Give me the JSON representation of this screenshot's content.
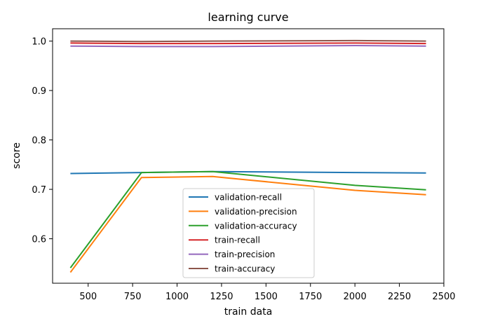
{
  "chart_data": {
    "type": "line",
    "title": "learning curve",
    "xlabel": "train data",
    "ylabel": "score",
    "xlim": [
      300,
      2500
    ],
    "ylim": [
      0.51,
      1.025
    ],
    "xticks": [
      500,
      750,
      1000,
      1250,
      1500,
      1750,
      2000,
      2250,
      2500
    ],
    "yticks": [
      0.6,
      0.7,
      0.8,
      0.9,
      1.0
    ],
    "xtick_labels": [
      "500",
      "750",
      "1000",
      "1250",
      "1500",
      "1750",
      "2000",
      "2250",
      "2500"
    ],
    "ytick_labels": [
      "0.6",
      "0.7",
      "0.8",
      "0.9",
      "1.0"
    ],
    "grid": false,
    "legend_position": "lower-center",
    "x": [
      400,
      800,
      1200,
      2000,
      2400
    ],
    "series": [
      {
        "name": "validation-recall",
        "color": "#1f77b4",
        "values": [
          0.732,
          0.734,
          0.736,
          0.734,
          0.733
        ]
      },
      {
        "name": "validation-precision",
        "color": "#ff7f0e",
        "values": [
          0.532,
          0.724,
          0.726,
          0.698,
          0.689
        ]
      },
      {
        "name": "validation-accuracy",
        "color": "#2ca02c",
        "values": [
          0.541,
          0.734,
          0.736,
          0.708,
          0.699
        ]
      },
      {
        "name": "train-recall",
        "color": "#d62728",
        "values": [
          0.996,
          0.995,
          0.995,
          0.996,
          0.995
        ]
      },
      {
        "name": "train-precision",
        "color": "#9467bd",
        "values": [
          0.99,
          0.989,
          0.989,
          0.991,
          0.99
        ]
      },
      {
        "name": "train-accuracy",
        "color": "#8c564b",
        "values": [
          1.0,
          0.999,
          1.0,
          1.001,
          1.0
        ]
      }
    ]
  }
}
